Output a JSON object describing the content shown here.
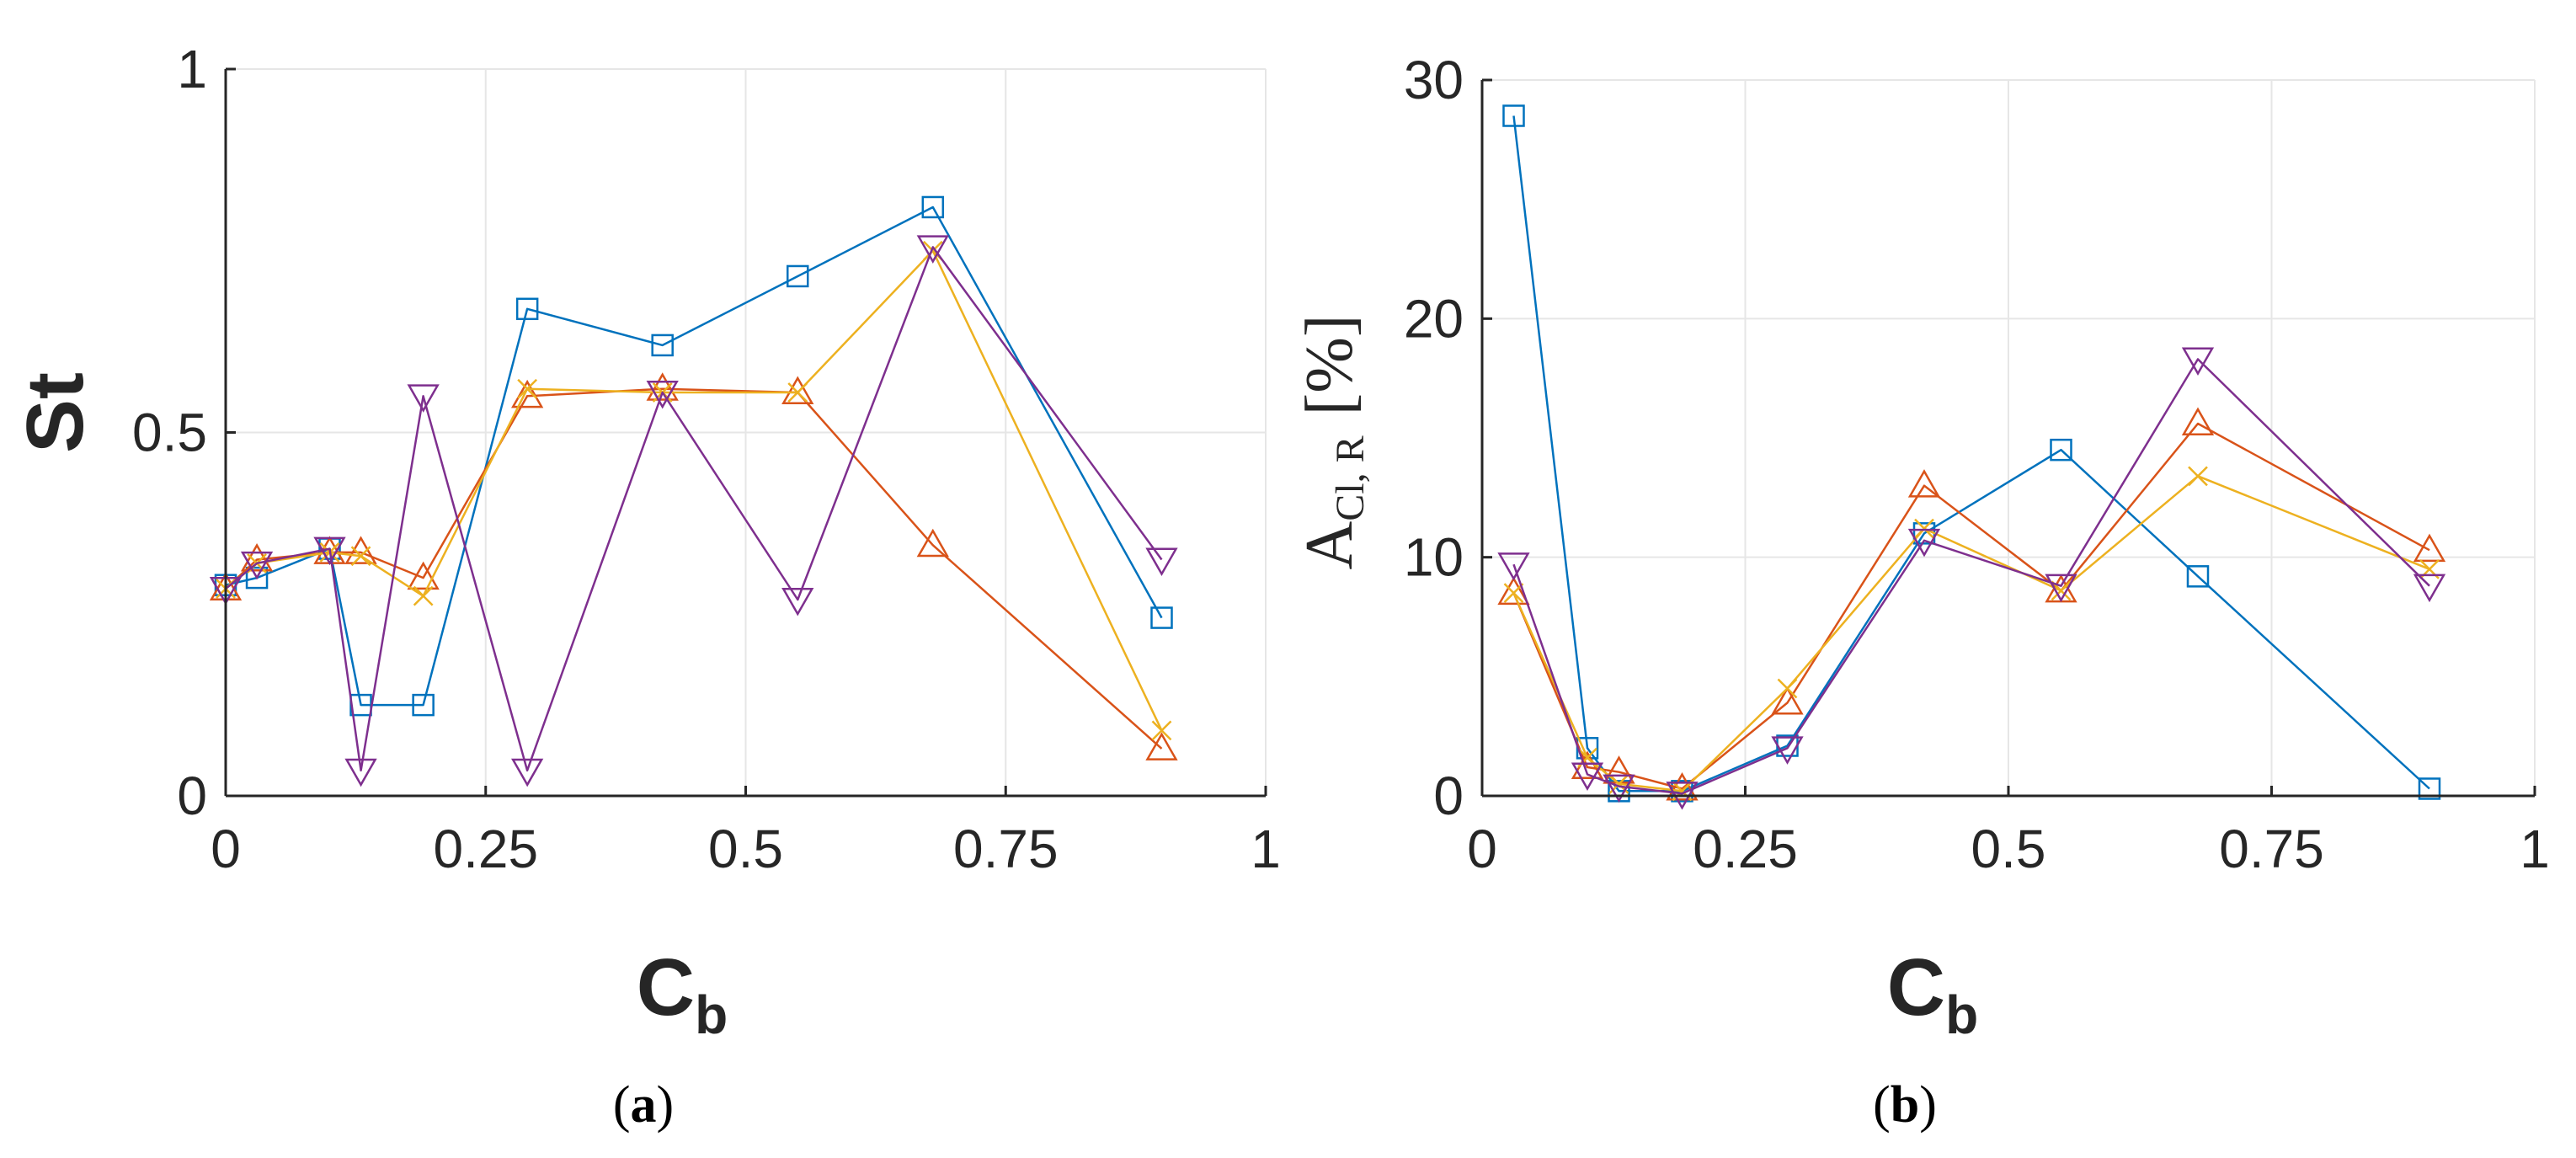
{
  "colors": {
    "series": [
      "#0072BD",
      "#D95319",
      "#EDB120",
      "#7E2F8E"
    ],
    "axis": "#262626",
    "grid": "#E6E6E6"
  },
  "chart_data": [
    {
      "type": "line",
      "panel": "a",
      "caption": "(a)",
      "xlabel": "C",
      "xlabel_sub": "b",
      "ylabel": "St",
      "xlim": [
        0,
        1
      ],
      "ylim": [
        0,
        1
      ],
      "xticks": [
        "0",
        "0.25",
        "0.5",
        "0.75",
        "1"
      ],
      "yticks": [
        "0",
        "0.5",
        "1"
      ],
      "xtick_values": [
        0,
        0.25,
        0.5,
        0.75,
        1
      ],
      "ytick_values": [
        0,
        0.5,
        1
      ],
      "grid": true,
      "series": [
        {
          "marker": "square",
          "x": [
            0,
            0.03,
            0.1,
            0.13,
            0.19,
            0.29,
            0.42,
            0.55,
            0.68,
            0.9
          ],
          "y": [
            0.29,
            0.3,
            0.34,
            0.125,
            0.125,
            0.67,
            0.62,
            0.715,
            0.81,
            0.245
          ]
        },
        {
          "marker": "triangle-up",
          "x": [
            0,
            0.03,
            0.1,
            0.13,
            0.19,
            0.29,
            0.42,
            0.55,
            0.68,
            0.9
          ],
          "y": [
            0.285,
            0.325,
            0.335,
            0.335,
            0.3,
            0.55,
            0.56,
            0.555,
            0.345,
            0.065
          ]
        },
        {
          "marker": "x",
          "x": [
            0,
            0.03,
            0.1,
            0.13,
            0.19,
            0.29,
            0.42,
            0.55,
            0.68,
            0.9
          ],
          "y": [
            0.285,
            0.32,
            0.335,
            0.33,
            0.275,
            0.56,
            0.555,
            0.555,
            0.75,
            0.09
          ]
        },
        {
          "marker": "triangle-down",
          "x": [
            0,
            0.03,
            0.1,
            0.13,
            0.19,
            0.29,
            0.42,
            0.55,
            0.68,
            0.9
          ],
          "y": [
            0.285,
            0.32,
            0.34,
            0.035,
            0.55,
            0.035,
            0.555,
            0.27,
            0.755,
            0.325
          ]
        }
      ]
    },
    {
      "type": "line",
      "panel": "b",
      "caption": "(b)",
      "xlabel": "C",
      "xlabel_sub": "b",
      "ylabel": "A",
      "ylabel_sub": "Cl, R",
      "ylabel_unit": "[%]",
      "xlim": [
        0,
        1
      ],
      "ylim": [
        0,
        30
      ],
      "xticks": [
        "0",
        "0.25",
        "0.5",
        "0.75",
        "1"
      ],
      "yticks": [
        "0",
        "10",
        "20",
        "30"
      ],
      "xtick_values": [
        0,
        0.25,
        0.5,
        0.75,
        1
      ],
      "ytick_values": [
        0,
        10,
        20,
        30
      ],
      "grid": true,
      "series": [
        {
          "marker": "square",
          "x": [
            0.03,
            0.1,
            0.13,
            0.19,
            0.29,
            0.42,
            0.55,
            0.68,
            0.9
          ],
          "y": [
            28.5,
            2.0,
            0.2,
            0.2,
            2.1,
            11.0,
            14.5,
            9.2,
            0.3
          ]
        },
        {
          "marker": "triangle-up",
          "x": [
            0.03,
            0.1,
            0.13,
            0.19,
            0.29,
            0.42,
            0.55,
            0.68,
            0.9
          ],
          "y": [
            8.5,
            1.2,
            1.0,
            0.3,
            3.9,
            13.0,
            8.6,
            15.6,
            10.3
          ]
        },
        {
          "marker": "x",
          "x": [
            0.03,
            0.1,
            0.13,
            0.19,
            0.29,
            0.42,
            0.55,
            0.68,
            0.9
          ],
          "y": [
            8.5,
            1.6,
            0.5,
            0.2,
            4.5,
            11.2,
            8.6,
            13.4,
            9.5
          ]
        },
        {
          "marker": "triangle-down",
          "x": [
            0.03,
            0.1,
            0.13,
            0.19,
            0.29,
            0.42,
            0.55,
            0.68,
            0.9
          ],
          "y": [
            9.7,
            0.9,
            0.4,
            0.1,
            2.0,
            10.7,
            8.8,
            18.3,
            8.8
          ]
        }
      ]
    }
  ]
}
